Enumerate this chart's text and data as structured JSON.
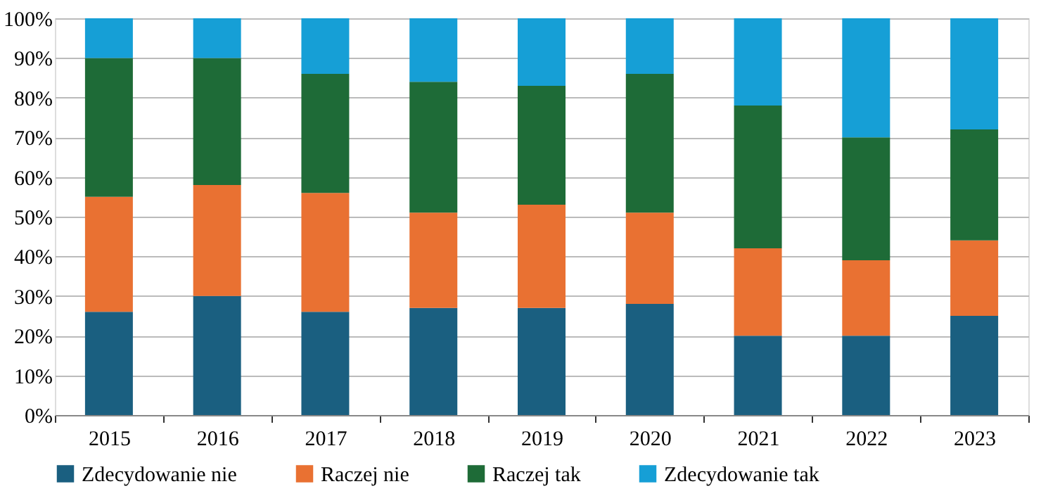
{
  "chart_data": {
    "type": "bar",
    "stacked": true,
    "categories": [
      "2015",
      "2016",
      "2017",
      "2018",
      "2019",
      "2020",
      "2021",
      "2022",
      "2023"
    ],
    "series": [
      {
        "name": "Zdecydowanie nie",
        "color": "#1a5f80",
        "values": [
          26,
          30,
          26,
          27,
          27,
          28,
          20,
          20,
          25
        ]
      },
      {
        "name": "Raczej nie",
        "color": "#e97132",
        "values": [
          29,
          28,
          30,
          24,
          26,
          23,
          22,
          19,
          19
        ]
      },
      {
        "name": "Raczej tak",
        "color": "#1e6b37",
        "values": [
          35,
          32,
          30,
          33,
          30,
          35,
          36,
          31,
          28
        ]
      },
      {
        "name": "Zdecydowanie tak",
        "color": "#169fd6",
        "values": [
          10,
          10,
          14,
          16,
          17,
          14,
          22,
          30,
          28
        ]
      }
    ],
    "ylim": [
      0,
      100
    ],
    "yticks": [
      {
        "value": 0,
        "label": "0%"
      },
      {
        "value": 10,
        "label": "10%"
      },
      {
        "value": 20,
        "label": "20%"
      },
      {
        "value": 30,
        "label": "30%"
      },
      {
        "value": 40,
        "label": "40%"
      },
      {
        "value": 50,
        "label": "50%"
      },
      {
        "value": 60,
        "label": "60%"
      },
      {
        "value": 70,
        "label": "70%"
      },
      {
        "value": 80,
        "label": "80%"
      },
      {
        "value": 90,
        "label": "90%"
      },
      {
        "value": 100,
        "label": "100%"
      }
    ],
    "grid": "y",
    "legend": "bottom"
  }
}
